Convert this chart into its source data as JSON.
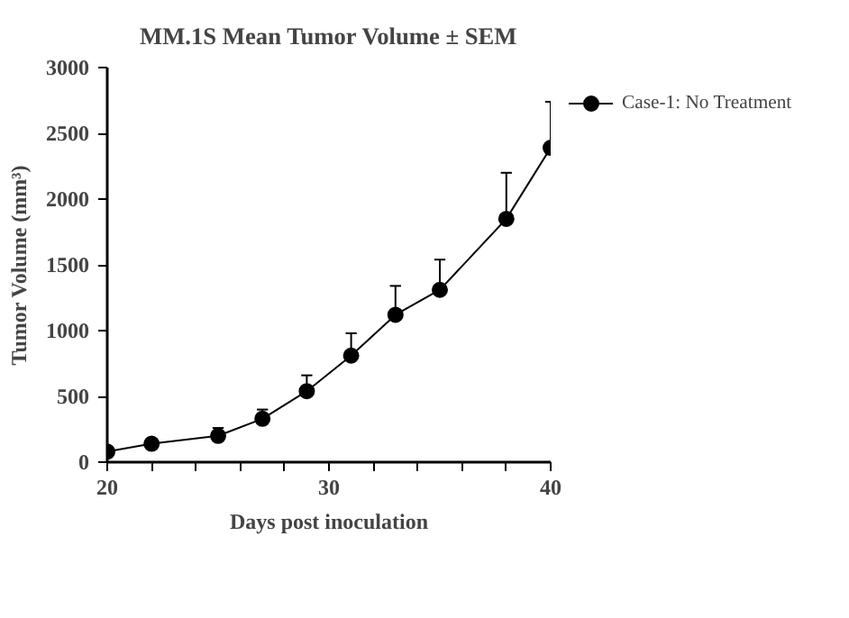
{
  "chart_data": {
    "type": "line",
    "title": "MM.1S Mean Tumor Volume ± SEM",
    "xlabel": "Days post inoculation",
    "ylabel": "Tumor Volume (mm³)",
    "x": [
      20,
      22,
      25,
      27,
      29,
      31,
      33,
      35,
      38,
      40
    ],
    "series": [
      {
        "name": "Case-1: No Treatment",
        "color": "#000000",
        "values": [
          80,
          140,
          200,
          330,
          540,
          810,
          1120,
          1310,
          1850,
          2390
        ],
        "errors": [
          null,
          null,
          [
            200,
            260
          ],
          [
            330,
            400
          ],
          [
            540,
            660
          ],
          [
            810,
            980
          ],
          [
            1120,
            1340
          ],
          [
            1310,
            1540
          ],
          [
            1850,
            2200
          ],
          [
            2390,
            2740
          ]
        ]
      }
    ],
    "xlim": [
      20,
      40
    ],
    "ylim": [
      0,
      3000
    ],
    "xticks": [
      20,
      {
        "value": 22,
        "label": null
      },
      {
        "value": 24,
        "label": null
      },
      {
        "value": 26,
        "label": null
      },
      {
        "value": 28,
        "label": null
      },
      30,
      {
        "value": 32,
        "label": null
      },
      {
        "value": 34,
        "label": null
      },
      {
        "value": 36,
        "label": null
      },
      {
        "value": 38,
        "label": null
      },
      40
    ],
    "yticks": [
      0,
      500,
      1000,
      1500,
      2000,
      2500,
      3000
    ],
    "marker": "circle",
    "line_style": "solid",
    "grid": false,
    "legend": "right"
  }
}
